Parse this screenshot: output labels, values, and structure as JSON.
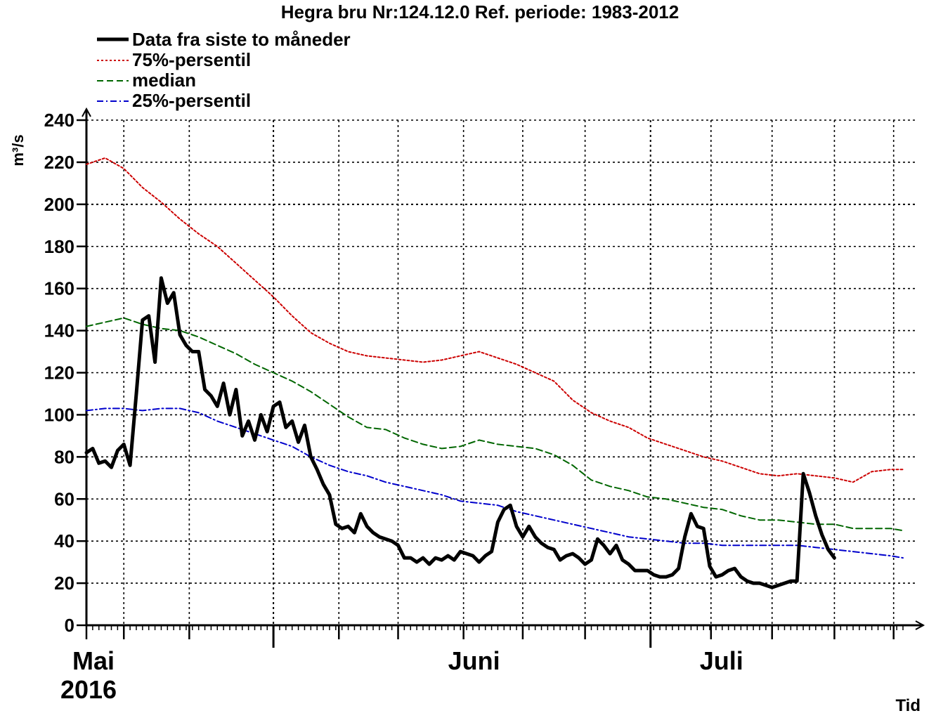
{
  "chart_data": {
    "type": "line",
    "title": "Hegra bru Nr:124.12.0 Ref. periode: 1983-2012",
    "ylabel": "m³/s",
    "xlabel": "Tid",
    "ylim": [
      0,
      240
    ],
    "y_ticks": [
      "0",
      "20",
      "40",
      "60",
      "80",
      "100",
      "120",
      "140",
      "160",
      "180",
      "200",
      "220",
      "240"
    ],
    "x_range_days": [
      0,
      131
    ],
    "month_labels": [
      {
        "label": "Mai",
        "day": 0
      },
      {
        "label": "Juni",
        "day": 60.5
      },
      {
        "label": "Juli",
        "day": 100.2
      }
    ],
    "year_label": "2016",
    "grid": true,
    "legend_position": "top-left",
    "colors": {
      "data": "#000000",
      "p75": "#cc0000",
      "median": "#006600",
      "p25": "#0000cc"
    },
    "series": [
      {
        "name": "Data fra siste to måneder",
        "style": "solid-thick",
        "x": [
          0,
          1,
          2,
          3,
          4,
          5,
          6,
          7,
          8,
          9,
          10,
          11,
          12,
          13,
          14,
          15,
          16,
          17,
          18,
          19,
          20,
          21,
          22,
          23,
          24,
          25,
          26,
          27,
          28,
          29,
          30,
          31,
          32,
          33,
          34,
          35,
          36,
          37,
          38,
          39,
          40,
          41,
          42,
          43,
          44,
          45,
          46,
          47,
          48,
          49,
          50,
          51,
          52,
          53,
          54,
          55,
          56,
          57,
          58,
          59,
          60,
          61,
          62,
          63,
          64,
          65,
          66,
          67,
          68,
          69,
          70,
          71,
          72,
          73,
          74,
          75,
          76,
          77,
          78,
          79,
          80,
          81,
          82,
          83,
          84,
          85,
          86,
          87,
          88,
          89,
          90,
          91,
          92,
          93,
          94,
          95,
          96,
          97,
          98,
          99,
          100,
          101,
          102,
          103,
          104,
          105,
          106,
          107,
          108,
          109,
          110,
          111,
          112,
          113,
          114,
          115,
          116,
          117,
          118,
          119,
          120
        ],
        "y": [
          82,
          84,
          77,
          78,
          75,
          83,
          86,
          76,
          110,
          145,
          147,
          125,
          165,
          153,
          158,
          138,
          133,
          130,
          130,
          112,
          109,
          104,
          115,
          100,
          112,
          90,
          97,
          88,
          100,
          92,
          104,
          106,
          94,
          97,
          87,
          95,
          80,
          74,
          67,
          62,
          48,
          46,
          47,
          44,
          53,
          47,
          44,
          42,
          41,
          40,
          38,
          32,
          32,
          30,
          32,
          29,
          32,
          31,
          33,
          31,
          35,
          34,
          33,
          30,
          33,
          35,
          49,
          55,
          57,
          47,
          42,
          47,
          42,
          39,
          37,
          36,
          31,
          33,
          34,
          32,
          29,
          31,
          41,
          38,
          34,
          38,
          31,
          29,
          26,
          26,
          26,
          24,
          23,
          23,
          24,
          27,
          42,
          53,
          47,
          46,
          28,
          23,
          24,
          26,
          27,
          23,
          21,
          20,
          20,
          19,
          18,
          19,
          20,
          21,
          21,
          72,
          63,
          52,
          43,
          36,
          32
        ]
      },
      {
        "name": "75%-persentil",
        "style": "dotted",
        "x": [
          0,
          3,
          6,
          9,
          12,
          15,
          18,
          21,
          24,
          27,
          30,
          33,
          36,
          39,
          42,
          45,
          48,
          51,
          54,
          57,
          60,
          63,
          66,
          69,
          72,
          75,
          78,
          81,
          84,
          87,
          90,
          93,
          96,
          99,
          102,
          105,
          108,
          111,
          114,
          117,
          120,
          123,
          126,
          129,
          131
        ],
        "y": [
          219,
          222,
          217,
          208,
          201,
          193,
          186,
          180,
          172,
          164,
          156,
          147,
          139,
          134,
          130,
          128,
          127,
          126,
          125,
          126,
          128,
          130,
          127,
          124,
          120,
          116,
          107,
          101,
          97,
          94,
          89,
          86,
          83,
          80,
          78,
          75,
          72,
          71,
          72,
          71,
          70,
          68,
          73,
          74,
          74
        ]
      },
      {
        "name": "median",
        "style": "dashed",
        "x": [
          0,
          3,
          6,
          9,
          12,
          15,
          18,
          21,
          24,
          27,
          30,
          33,
          36,
          39,
          42,
          45,
          48,
          51,
          54,
          57,
          60,
          63,
          66,
          69,
          72,
          75,
          78,
          81,
          84,
          87,
          90,
          93,
          96,
          99,
          102,
          105,
          108,
          111,
          114,
          117,
          120,
          123,
          126,
          129,
          131
        ],
        "y": [
          142,
          144,
          146,
          143,
          141,
          140,
          137,
          133,
          129,
          124,
          120,
          116,
          111,
          105,
          99,
          94,
          93,
          89,
          86,
          84,
          85,
          88,
          86,
          85,
          84,
          81,
          76,
          69,
          66,
          64,
          61,
          60,
          58,
          56,
          55,
          52,
          50,
          50,
          49,
          48,
          48,
          46,
          46,
          46,
          45
        ]
      },
      {
        "name": "25%-persentil",
        "style": "dashdot",
        "x": [
          0,
          3,
          6,
          9,
          12,
          15,
          18,
          21,
          24,
          27,
          30,
          33,
          36,
          39,
          42,
          45,
          48,
          51,
          54,
          57,
          60,
          63,
          66,
          69,
          72,
          75,
          78,
          81,
          84,
          87,
          90,
          93,
          96,
          99,
          102,
          105,
          108,
          111,
          114,
          117,
          120,
          123,
          126,
          129,
          131
        ],
        "y": [
          102,
          103,
          103,
          102,
          103,
          103,
          101,
          97,
          94,
          91,
          88,
          85,
          80,
          76,
          73,
          71,
          68,
          66,
          64,
          62,
          59,
          58,
          57,
          54,
          52,
          50,
          48,
          46,
          44,
          42,
          41,
          40,
          39,
          39,
          38,
          38,
          38,
          38,
          38,
          37,
          36,
          35,
          34,
          33,
          32
        ]
      }
    ]
  }
}
